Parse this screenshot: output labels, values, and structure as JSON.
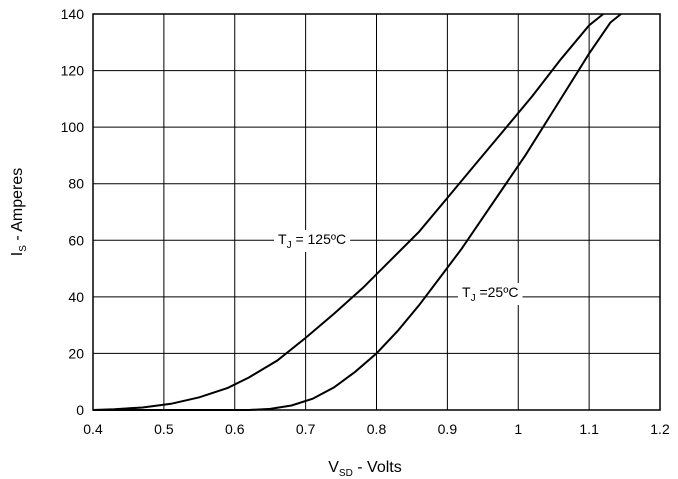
{
  "chart_data": {
    "type": "line",
    "xlim": [
      0.4,
      1.2
    ],
    "ylim": [
      0,
      140
    ],
    "x_ticks": [
      0.4,
      0.5,
      0.6,
      0.7,
      0.8,
      0.9,
      1,
      1.1,
      1.2
    ],
    "y_ticks": [
      0,
      20,
      40,
      60,
      80,
      100,
      120,
      140
    ],
    "x_tick_labels": [
      "0.4",
      "0.5",
      "0.6",
      "0.7",
      "0.8",
      "0.9",
      "1",
      "1.1",
      "1.2"
    ],
    "y_tick_labels": [
      "0",
      "20",
      "40",
      "60",
      "80",
      "100",
      "120",
      "140"
    ],
    "grid": true,
    "xlabel": {
      "main": "V",
      "sub": "SD",
      "rest": " - Volts"
    },
    "ylabel": {
      "main": "I",
      "sub": "S",
      "rest": " - Amperes"
    },
    "series": [
      {
        "label": {
          "main": "T",
          "sub": "J",
          "rest": " = 125ºC"
        },
        "points": [
          [
            0.4,
            0
          ],
          [
            0.43,
            0.3
          ],
          [
            0.47,
            0.9
          ],
          [
            0.51,
            2.2
          ],
          [
            0.55,
            4.5
          ],
          [
            0.59,
            7.8
          ],
          [
            0.62,
            11.5
          ],
          [
            0.66,
            17.5
          ],
          [
            0.7,
            25.5
          ],
          [
            0.74,
            34
          ],
          [
            0.78,
            43
          ],
          [
            0.82,
            53
          ],
          [
            0.86,
            63
          ],
          [
            0.9,
            75
          ],
          [
            0.94,
            87
          ],
          [
            0.98,
            99
          ],
          [
            1.02,
            111
          ],
          [
            1.06,
            124
          ],
          [
            1.1,
            136
          ],
          [
            1.12,
            140
          ]
        ]
      },
      {
        "label": {
          "main": "T",
          "sub": "J",
          "rest": " =25ºC"
        },
        "points": [
          [
            0.4,
            0
          ],
          [
            0.62,
            0
          ],
          [
            0.65,
            0.4
          ],
          [
            0.68,
            1.6
          ],
          [
            0.71,
            4
          ],
          [
            0.74,
            8
          ],
          [
            0.77,
            13.5
          ],
          [
            0.8,
            20
          ],
          [
            0.83,
            28
          ],
          [
            0.86,
            37
          ],
          [
            0.89,
            47
          ],
          [
            0.92,
            57
          ],
          [
            0.95,
            68
          ],
          [
            0.98,
            79
          ],
          [
            1.01,
            90
          ],
          [
            1.04,
            102
          ],
          [
            1.07,
            114
          ],
          [
            1.1,
            126
          ],
          [
            1.13,
            137
          ],
          [
            1.145,
            140
          ]
        ]
      }
    ]
  }
}
